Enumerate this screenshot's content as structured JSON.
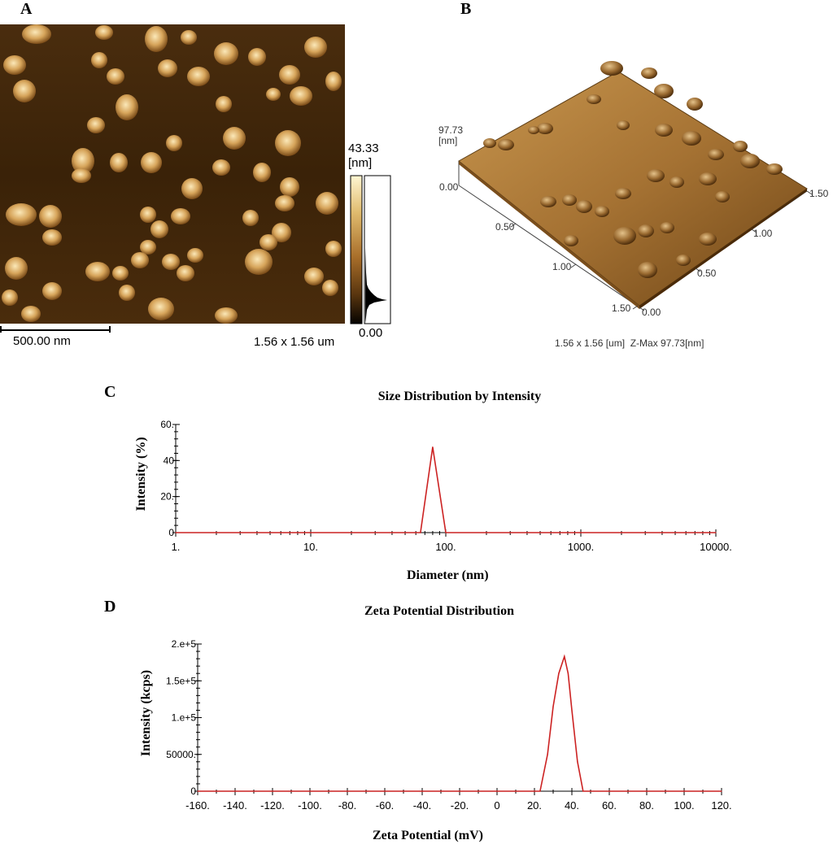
{
  "panels": {
    "a": {
      "letter": "A",
      "scale_bar_label": "500.00 nm",
      "scan_size": "1.56 x 1.56 um",
      "colorbar_max": "43.33",
      "colorbar_unit": "[nm]",
      "colorbar_min": "0.00"
    },
    "b": {
      "letter": "B",
      "z_value": "97.73",
      "z_unit": "[nm]",
      "z_zero": "0.00",
      "left_axis_ticks": [
        "0.50",
        "1.00",
        "1.50"
      ],
      "right_axis_ticks": [
        "0.00",
        "0.50",
        "1.00",
        "1.50"
      ],
      "caption": "1.56 x 1.56 [um]  Z-Max 97.73[nm]"
    },
    "c": {
      "letter": "C"
    },
    "d": {
      "letter": "D"
    }
  },
  "colors": {
    "afm_dark": "#3a2208",
    "afm_mid": "#6b4316",
    "afm_light": "#f3d79a",
    "curve": "#cc2222"
  },
  "chart_data": [
    {
      "type": "line",
      "title": "Size Distribution by Intensity",
      "xlabel": "Diameter (nm)",
      "ylabel": "Intensity (%)",
      "x_scale": "log",
      "xlim": [
        1,
        10000
      ],
      "ylim": [
        0,
        60
      ],
      "x_tick_labels": [
        "1.",
        "10.",
        "100.",
        "1000.",
        "10000."
      ],
      "x_tick_values": [
        1,
        10,
        100,
        1000,
        10000
      ],
      "y_tick_labels": [
        "0",
        "20.",
        "40",
        "60."
      ],
      "y_tick_values": [
        0,
        20,
        40,
        60
      ],
      "series": [
        {
          "x": [
            1,
            65,
            80,
            100,
            10000
          ],
          "y": [
            0,
            0,
            47.5,
            0,
            0
          ]
        }
      ]
    },
    {
      "type": "line",
      "title": "Zeta Potential Distribution",
      "xlabel": "Zeta Potential (mV)",
      "ylabel": "Intensity (kcps)",
      "xlim": [
        -160,
        120
      ],
      "ylim": [
        0,
        200000
      ],
      "x_tick_labels": [
        "-160.",
        "-140.",
        "-120.",
        "-100.",
        "-80.",
        "-60.",
        "-40.",
        "-20.",
        "0",
        "20.",
        "40.",
        "60.",
        "80.",
        "100.",
        "120."
      ],
      "x_tick_values": [
        -160,
        -140,
        -120,
        -100,
        -80,
        -60,
        -40,
        -20,
        0,
        20,
        40,
        60,
        80,
        100,
        120
      ],
      "y_tick_labels": [
        "0",
        "50000.",
        "1.e+5",
        "1.5e+5",
        "2.e+5"
      ],
      "y_tick_values": [
        0,
        50000,
        100000,
        150000,
        200000
      ],
      "series": [
        {
          "x": [
            -160,
            23,
            27,
            30,
            33,
            36,
            38,
            40,
            43,
            46,
            120
          ],
          "y": [
            0,
            0,
            50000,
            115000,
            160000,
            183000,
            160000,
            110000,
            40000,
            0,
            0
          ]
        }
      ]
    }
  ]
}
